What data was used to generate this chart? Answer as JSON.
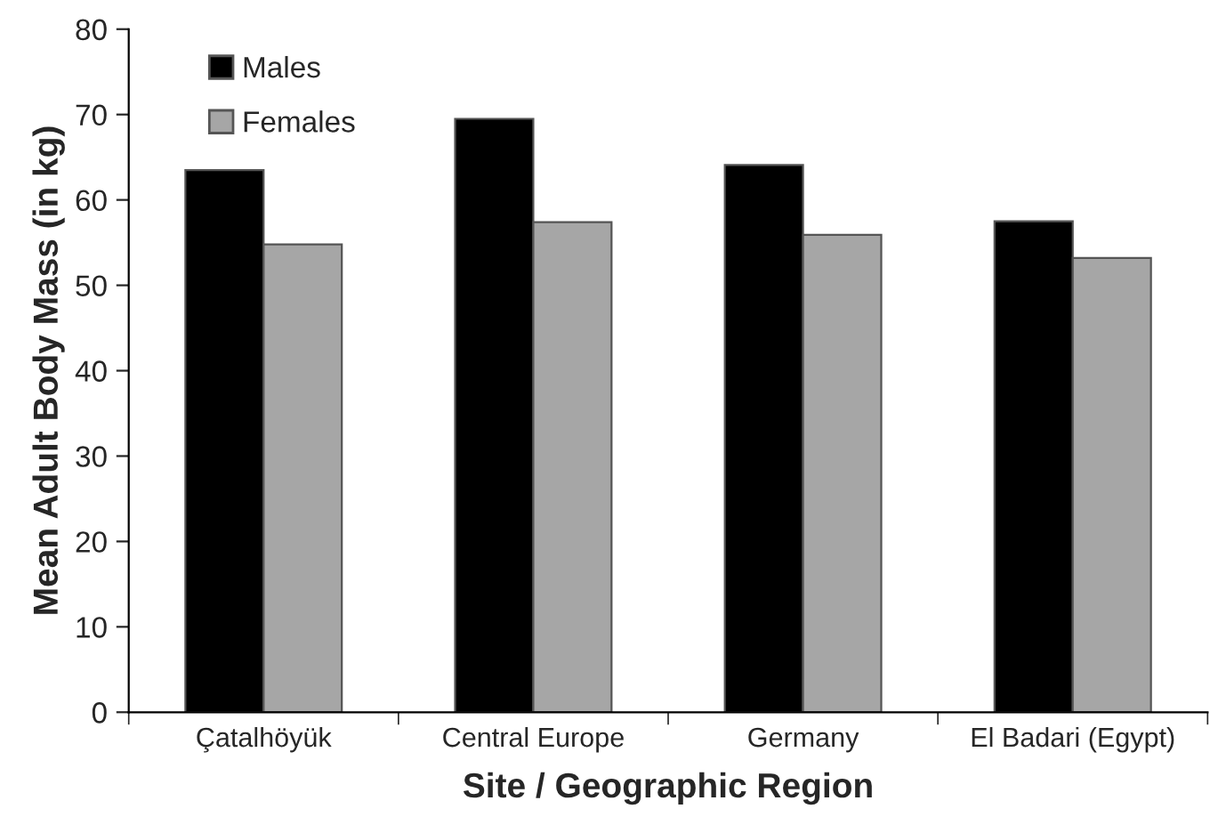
{
  "chart_data": {
    "type": "bar",
    "xlabel": "Site / Geographic Region",
    "ylabel": "Mean Adult Body Mass (in kg)",
    "categories": [
      "Çatalhöyük",
      "Central Europe",
      "Germany",
      "El Badari (Egypt)"
    ],
    "series": [
      {
        "name": "Males",
        "color": "#000000",
        "values": [
          63.5,
          69.5,
          64.1,
          57.5
        ]
      },
      {
        "name": "Females",
        "color": "#a6a6a6",
        "values": [
          54.8,
          57.4,
          55.9,
          53.2
        ]
      }
    ],
    "ylim": [
      0,
      80
    ],
    "yticks": [
      0,
      10,
      20,
      30,
      40,
      50,
      60,
      70,
      80
    ],
    "grid": false,
    "legend": "top left"
  }
}
